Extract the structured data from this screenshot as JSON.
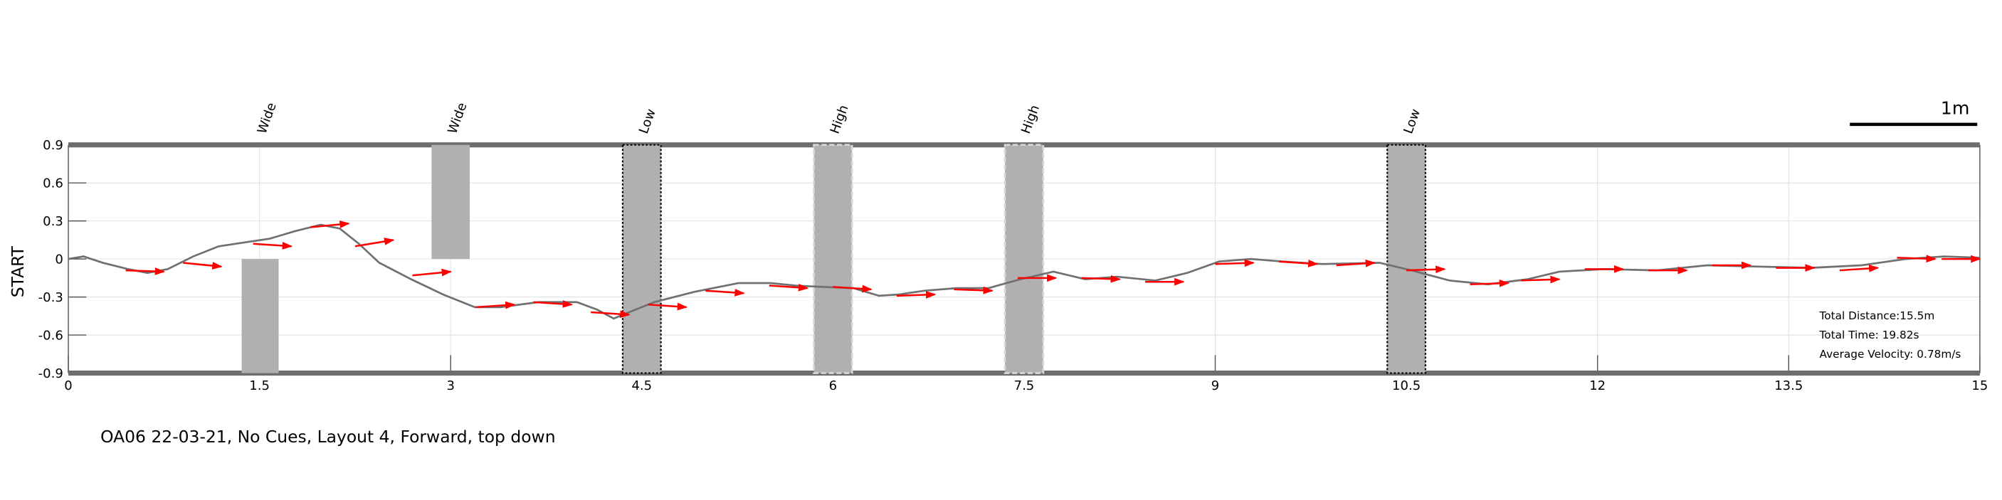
{
  "chart_data": {
    "type": "line",
    "caption": "OA06 22-03-21, No Cues, Layout 4, Forward, top down",
    "ylabel": "START",
    "xlim": [
      0,
      15
    ],
    "ylim": [
      -0.9,
      0.9
    ],
    "xticks": [
      0,
      1.5,
      3,
      4.5,
      6,
      7.5,
      9,
      10.5,
      12,
      13.5,
      15
    ],
    "yticks": [
      0.9,
      0.6,
      0.3,
      0,
      -0.3,
      -0.6,
      -0.9
    ],
    "grid": true,
    "color": "#707070",
    "arrow_color": "#ff0000",
    "x": [
      0,
      0.12,
      0.27,
      0.47,
      0.62,
      0.78,
      0.98,
      1.18,
      1.38,
      1.58,
      1.78,
      1.98,
      2.13,
      2.28,
      2.44,
      2.69,
      2.94,
      3.19,
      3.39,
      3.69,
      3.99,
      4.15,
      4.28,
      4.4,
      4.6,
      4.91,
      5.26,
      5.51,
      5.71,
      5.91,
      6.16,
      6.36,
      6.52,
      6.72,
      6.97,
      7.22,
      7.47,
      7.73,
      7.98,
      8.23,
      8.53,
      8.78,
      9.03,
      9.28,
      9.53,
      9.84,
      10.29,
      10.54,
      10.84,
      11.14,
      11.45,
      11.7,
      12.05,
      12.46,
      12.86,
      13.26,
      13.67,
      14.07,
      14.42,
      14.72,
      15
    ],
    "values": [
      0,
      0.02,
      -0.03,
      -0.08,
      -0.11,
      -0.08,
      0.02,
      0.1,
      0.13,
      0.16,
      0.22,
      0.27,
      0.24,
      0.12,
      -0.03,
      -0.16,
      -0.28,
      -0.38,
      -0.38,
      -0.34,
      -0.34,
      -0.4,
      -0.47,
      -0.42,
      -0.34,
      -0.26,
      -0.19,
      -0.19,
      -0.21,
      -0.22,
      -0.23,
      -0.29,
      -0.28,
      -0.25,
      -0.23,
      -0.23,
      -0.16,
      -0.1,
      -0.16,
      -0.14,
      -0.17,
      -0.11,
      -0.02,
      0,
      -0.02,
      -0.04,
      -0.03,
      -0.09,
      -0.17,
      -0.2,
      -0.16,
      -0.1,
      -0.08,
      -0.09,
      -0.05,
      -0.06,
      -0.07,
      -0.05,
      0,
      0.02,
      0.01
    ],
    "arrows": [
      {
        "x": 0.45,
        "y": -0.09,
        "x2": 0.75,
        "y2": -0.1
      },
      {
        "x": 0.9,
        "y": -0.03,
        "x2": 1.2,
        "y2": -0.06
      },
      {
        "x": 1.45,
        "y": 0.12,
        "x2": 1.75,
        "y2": 0.1
      },
      {
        "x": 1.9,
        "y": 0.25,
        "x2": 2.2,
        "y2": 0.28
      },
      {
        "x": 2.25,
        "y": 0.1,
        "x2": 2.55,
        "y2": 0.15
      },
      {
        "x": 2.7,
        "y": -0.13,
        "x2": 3.0,
        "y2": -0.1
      },
      {
        "x": 3.2,
        "y": -0.38,
        "x2": 3.5,
        "y2": -0.36
      },
      {
        "x": 3.65,
        "y": -0.34,
        "x2": 3.95,
        "y2": -0.36
      },
      {
        "x": 4.1,
        "y": -0.42,
        "x2": 4.4,
        "y2": -0.44
      },
      {
        "x": 4.55,
        "y": -0.36,
        "x2": 4.85,
        "y2": -0.38
      },
      {
        "x": 5.0,
        "y": -0.25,
        "x2": 5.3,
        "y2": -0.27
      },
      {
        "x": 5.5,
        "y": -0.21,
        "x2": 5.8,
        "y2": -0.23
      },
      {
        "x": 6.0,
        "y": -0.22,
        "x2": 6.3,
        "y2": -0.24
      },
      {
        "x": 6.5,
        "y": -0.29,
        "x2": 6.8,
        "y2": -0.28
      },
      {
        "x": 6.95,
        "y": -0.24,
        "x2": 7.25,
        "y2": -0.25
      },
      {
        "x": 7.45,
        "y": -0.15,
        "x2": 7.75,
        "y2": -0.15
      },
      {
        "x": 7.95,
        "y": -0.15,
        "x2": 8.25,
        "y2": -0.16
      },
      {
        "x": 8.45,
        "y": -0.18,
        "x2": 8.75,
        "y2": -0.18
      },
      {
        "x": 9.0,
        "y": -0.04,
        "x2": 9.3,
        "y2": -0.03
      },
      {
        "x": 9.5,
        "y": -0.02,
        "x2": 9.8,
        "y2": -0.04
      },
      {
        "x": 9.95,
        "y": -0.05,
        "x2": 10.25,
        "y2": -0.03
      },
      {
        "x": 10.5,
        "y": -0.09,
        "x2": 10.8,
        "y2": -0.08
      },
      {
        "x": 11.0,
        "y": -0.2,
        "x2": 11.3,
        "y2": -0.19
      },
      {
        "x": 11.4,
        "y": -0.17,
        "x2": 11.7,
        "y2": -0.16
      },
      {
        "x": 11.9,
        "y": -0.08,
        "x2": 12.2,
        "y2": -0.08
      },
      {
        "x": 12.4,
        "y": -0.09,
        "x2": 12.7,
        "y2": -0.09
      },
      {
        "x": 12.9,
        "y": -0.05,
        "x2": 13.2,
        "y2": -0.05
      },
      {
        "x": 13.4,
        "y": -0.07,
        "x2": 13.7,
        "y2": -0.07
      },
      {
        "x": 13.9,
        "y": -0.09,
        "x2": 14.2,
        "y2": -0.07
      },
      {
        "x": 14.35,
        "y": 0.01,
        "x2": 14.65,
        "y2": 0.0
      },
      {
        "x": 14.7,
        "y": 0.0,
        "x2": 15.0,
        "y2": 0.0
      }
    ],
    "obstacles": [
      {
        "label": "Wide",
        "x": [
          1.36,
          1.65
        ],
        "y": [
          -0.9,
          0
        ]
      },
      {
        "label": "Wide",
        "x": [
          2.85,
          3.15
        ],
        "y": [
          0,
          0.9
        ]
      },
      {
        "label": "Low",
        "x": [
          4.35,
          4.65
        ],
        "y": [
          -0.9,
          0.9
        ]
      },
      {
        "label": "High",
        "x": [
          5.85,
          6.15
        ],
        "y": [
          -0.9,
          0.9
        ]
      },
      {
        "label": "High",
        "x": [
          7.35,
          7.65
        ],
        "y": [
          -0.9,
          0.9
        ]
      },
      {
        "label": "Low",
        "x": [
          10.35,
          10.65
        ],
        "y": [
          -0.9,
          0.9
        ]
      }
    ],
    "scale_bar": {
      "label": "1m",
      "length": 1
    },
    "stats": [
      "Total Distance:15.5m",
      "Total Time: 19.82s",
      "Average Velocity: 0.78m/s"
    ]
  }
}
